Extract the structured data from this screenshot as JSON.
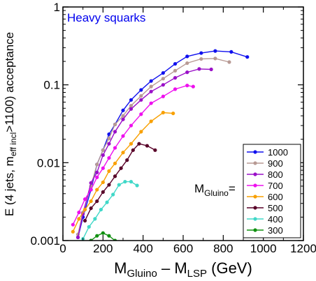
{
  "chart_data": {
    "type": "line",
    "annotation": "Heavy squarks",
    "annotation_color": "#0000ee",
    "xlabel": {
      "main1": "M",
      "sub1": "Gluino",
      "mid": " – M",
      "sub2": "LSP",
      "tail": "  (GeV)"
    },
    "ylabel": {
      "main1": "E (4 jets, m",
      "sub1": "eff incl",
      "tail": ">1100) acceptance"
    },
    "legend_title": {
      "main": "M",
      "sub": "Gluino",
      "tail": "="
    },
    "legend_placement": "lower-right",
    "y_scale": "log",
    "grid": false,
    "xlim": [
      0,
      1200
    ],
    "ylim": [
      0.001,
      1
    ],
    "x_ticks": [
      0,
      200,
      400,
      600,
      800,
      1000,
      1200
    ],
    "x_tick_labels": [
      "0",
      "200",
      "400",
      "600",
      "800",
      "1000",
      "1200"
    ],
    "y_ticks": [
      0.001,
      0.01,
      0.1,
      1
    ],
    "y_tick_labels": [
      "0.001",
      "0.01",
      "0.1",
      "1"
    ],
    "series": [
      {
        "name": "1000",
        "color": "#1010ee",
        "x": [
          75,
          100,
          140,
          170,
          200,
          230,
          260,
          300,
          340,
          390,
          440,
          500,
          560,
          620,
          690,
          760,
          840,
          920
        ],
        "y": [
          0.0011,
          0.002,
          0.0045,
          0.0095,
          0.0145,
          0.0232,
          0.031,
          0.047,
          0.064,
          0.086,
          0.112,
          0.142,
          0.186,
          0.232,
          0.256,
          0.272,
          0.265,
          0.228
        ]
      },
      {
        "name": "900",
        "color": "#b89a94",
        "x": [
          75,
          100,
          140,
          170,
          200,
          230,
          260,
          300,
          340,
          390,
          440,
          500,
          560,
          620,
          690,
          760,
          830
        ],
        "y": [
          0.0012,
          0.0023,
          0.005,
          0.0095,
          0.0145,
          0.0205,
          0.031,
          0.04,
          0.054,
          0.072,
          0.095,
          0.12,
          0.152,
          0.19,
          0.215,
          0.218,
          0.196
        ]
      },
      {
        "name": "800",
        "color": "#9a10c8",
        "x": [
          75,
          100,
          140,
          170,
          200,
          230,
          260,
          300,
          340,
          390,
          440,
          500,
          560,
          620,
          680,
          740
        ],
        "y": [
          0.0011,
          0.0022,
          0.0055,
          0.0075,
          0.0125,
          0.0175,
          0.025,
          0.036,
          0.049,
          0.064,
          0.082,
          0.1,
          0.123,
          0.145,
          0.16,
          0.158
        ]
      },
      {
        "name": "700",
        "color": "#ee10ee",
        "x": [
          50,
          80,
          110,
          140,
          170,
          200,
          230,
          260,
          300,
          340,
          390,
          440,
          500,
          560,
          620,
          650
        ],
        "y": [
          0.0016,
          0.0023,
          0.0034,
          0.0045,
          0.0065,
          0.0085,
          0.0115,
          0.0155,
          0.022,
          0.03,
          0.042,
          0.058,
          0.071,
          0.088,
          0.098,
          0.095
        ]
      },
      {
        "name": "600",
        "color": "#f8a000",
        "x": [
          50,
          80,
          110,
          140,
          170,
          200,
          230,
          260,
          300,
          340,
          390,
          440,
          500,
          550
        ],
        "y": [
          0.0013,
          0.0019,
          0.0025,
          0.0032,
          0.0045,
          0.0056,
          0.0078,
          0.0098,
          0.0135,
          0.0175,
          0.025,
          0.034,
          0.044,
          0.043
        ]
      },
      {
        "name": "500",
        "color": "#580028",
        "x": [
          110,
          140,
          170,
          200,
          230,
          260,
          290,
          320,
          350,
          380,
          420,
          460
        ],
        "y": [
          0.0018,
          0.0026,
          0.0032,
          0.0042,
          0.0052,
          0.0067,
          0.0085,
          0.0108,
          0.0145,
          0.0175,
          0.0165,
          0.0145
        ]
      },
      {
        "name": "400",
        "color": "#40d8c8",
        "x": [
          100,
          130,
          160,
          190,
          220,
          250,
          280,
          310,
          340,
          370
        ],
        "y": [
          0.00105,
          0.0015,
          0.0019,
          0.0025,
          0.0031,
          0.0039,
          0.0052,
          0.0057,
          0.0057,
          0.0051
        ]
      },
      {
        "name": "300",
        "color": "#109010",
        "x": [
          140,
          170,
          200,
          230,
          260
        ],
        "y": [
          0.001,
          0.00115,
          0.00125,
          0.00115,
          0.001
        ]
      }
    ]
  }
}
